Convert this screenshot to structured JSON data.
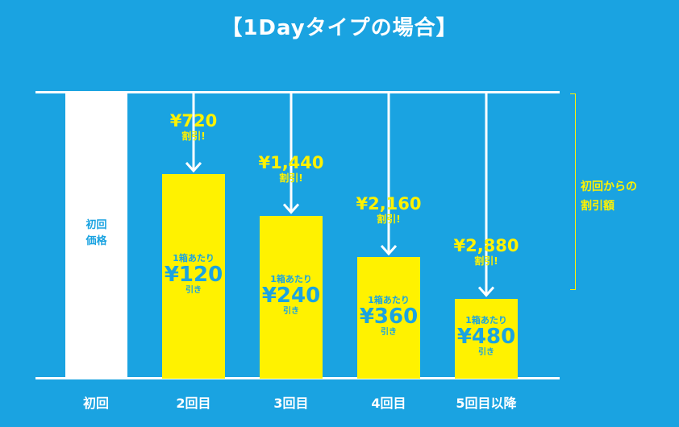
{
  "title": "【1Dayタイプの場合】",
  "first_box": {
    "label_line1": "初回",
    "label_line2": "価格",
    "x_label": "初回"
  },
  "per_box_prefix": "1箱あたり",
  "per_box_suffix": "引き",
  "discount_suffix": "割引!",
  "bracket_label": {
    "line1": "初回からの",
    "line2": "割引額"
  },
  "colors": {
    "background": "#1aa3e1",
    "bar": "#fff200",
    "line": "#ffffff",
    "accent_text": "#fff200"
  },
  "chart_data": {
    "type": "bar",
    "categories": [
      "初回",
      "2回目",
      "3回目",
      "4回目",
      "5回目以降"
    ],
    "series": [
      {
        "values": [
          null,
          720,
          1440,
          2160,
          2880
        ]
      }
    ],
    "discount_labels": [
      "",
      "¥720",
      "¥1,440",
      "¥2,160",
      "¥2,880"
    ],
    "per_box_labels": [
      "",
      "¥120",
      "¥240",
      "¥360",
      "¥480"
    ]
  }
}
